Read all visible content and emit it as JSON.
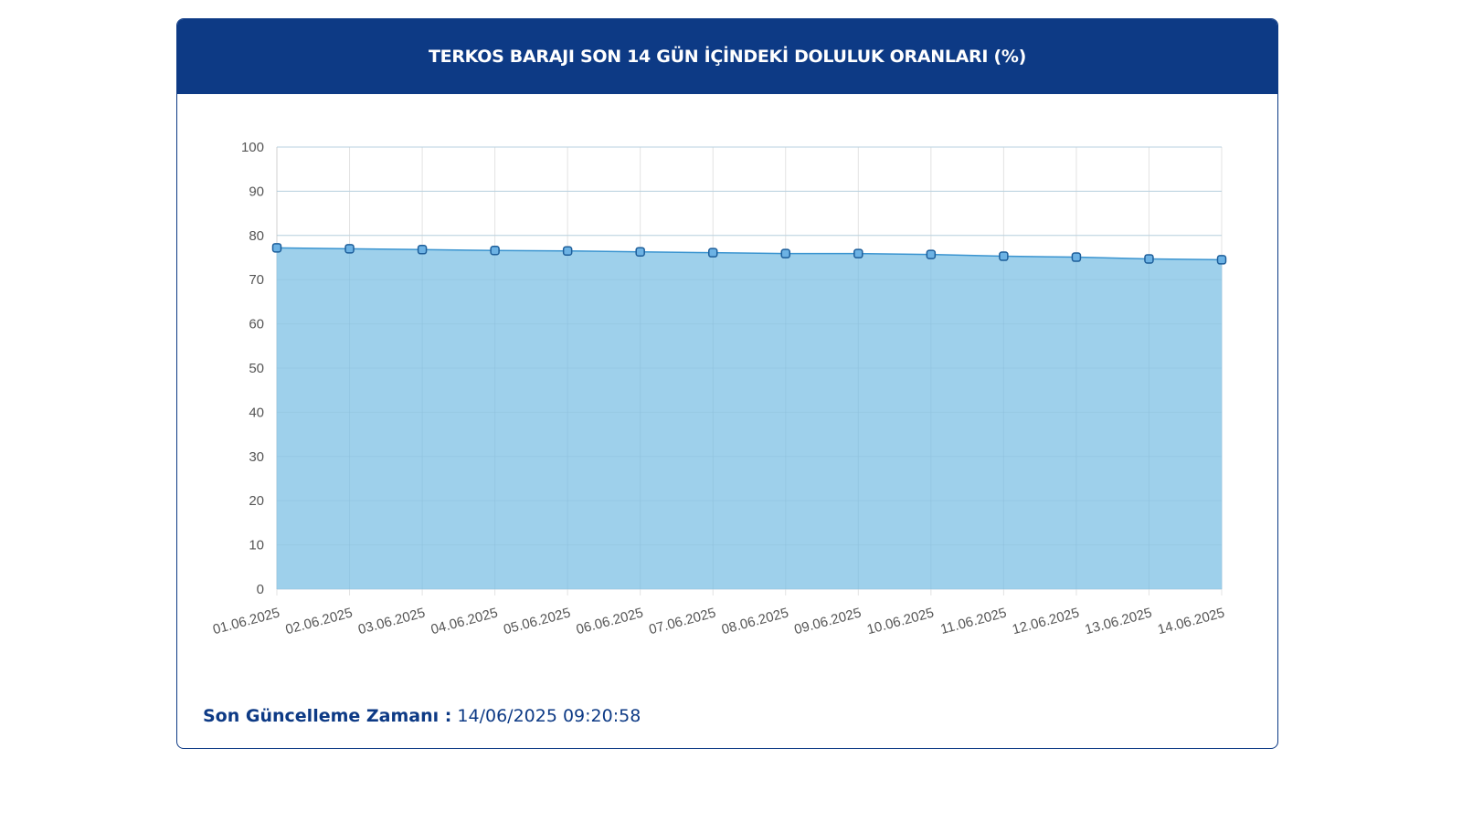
{
  "header": {
    "title": "TERKOS BARAJI SON 14 GÜN İÇİNDEKİ DOLULUK ORANLARI (%)"
  },
  "footer": {
    "label": "Son Güncelleme Zamanı :",
    "value": "14/06/2025 09:20:58"
  },
  "colors": {
    "header_bg": "#0d3a85",
    "area_fill": "#9ed0eb",
    "line": "#3a94d0",
    "marker_fill": "#6cb2e4",
    "marker_stroke": "#1d5e9a"
  },
  "chart_data": {
    "type": "area",
    "title": "TERKOS BARAJI SON 14 GÜN İÇİNDEKİ DOLULUK ORANLARI (%)",
    "xlabel": "",
    "ylabel": "",
    "categories": [
      "01.06.2025",
      "02.06.2025",
      "03.06.2025",
      "04.06.2025",
      "05.06.2025",
      "06.06.2025",
      "07.06.2025",
      "08.06.2025",
      "09.06.2025",
      "10.06.2025",
      "11.06.2025",
      "12.06.2025",
      "13.06.2025",
      "14.06.2025"
    ],
    "values": [
      77.2,
      77.0,
      76.8,
      76.6,
      76.5,
      76.3,
      76.1,
      75.9,
      75.9,
      75.7,
      75.3,
      75.1,
      74.7,
      74.5
    ],
    "ylim": [
      0,
      100
    ],
    "yticks": [
      0,
      10,
      20,
      30,
      40,
      50,
      60,
      70,
      80,
      90,
      100
    ],
    "grid": true,
    "legend": "none"
  }
}
